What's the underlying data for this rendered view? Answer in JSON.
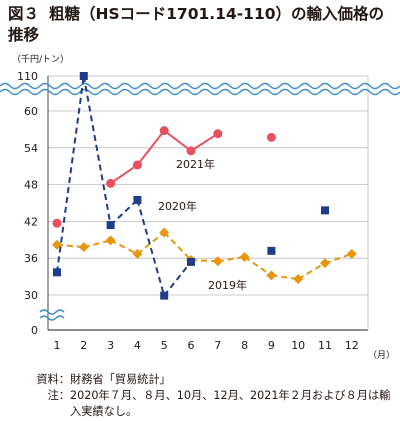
{
  "figure": {
    "label": "図３",
    "title": "粗糖（HSコード1701.14-110）の輸入価格の推移"
  },
  "chart_data": {
    "type": "line",
    "unit_label": "（千円/トン）",
    "x_unit": "（月）",
    "categories": [
      "1",
      "2",
      "3",
      "4",
      "5",
      "6",
      "7",
      "8",
      "9",
      "10",
      "11",
      "12"
    ],
    "y_ticks": [
      "0",
      "30",
      "36",
      "42",
      "48",
      "54",
      "60",
      "110"
    ],
    "axis_break": true,
    "series": [
      {
        "name": "2019年",
        "style": "dashed-diamond",
        "color": "#e8960f",
        "points": [
          [
            1,
            38.2
          ],
          [
            2,
            37.8
          ],
          [
            3,
            38.9
          ],
          [
            4,
            36.7
          ],
          [
            5,
            40.2
          ],
          [
            6,
            35.7
          ],
          [
            7,
            35.5
          ],
          [
            8,
            36.2
          ],
          [
            9,
            33.2
          ],
          [
            10,
            32.6
          ],
          [
            11,
            35.2
          ],
          [
            12,
            36.7
          ]
        ]
      },
      {
        "name": "2020年",
        "style": "dashed-square",
        "color": "#1f3d8a",
        "points": [
          [
            1,
            33.7
          ],
          [
            2,
            110
          ],
          [
            3,
            41.4
          ],
          [
            4,
            45.5
          ],
          [
            5,
            29.9
          ],
          [
            6,
            35.4
          ],
          [
            9,
            37.2
          ],
          [
            11,
            43.8
          ]
        ]
      },
      {
        "name": "2021年",
        "style": "solid-circle",
        "color": "#e8505f",
        "points": [
          [
            1,
            41.7
          ],
          [
            3,
            48.2
          ],
          [
            4,
            51.2
          ],
          [
            5,
            56.8
          ],
          [
            6,
            53.5
          ],
          [
            7,
            56.3
          ],
          [
            9,
            55.7
          ]
        ]
      }
    ],
    "gaps_note": "2020年7月、8月、10月、12月、2021年2月および8月は輸入実績なし。"
  },
  "notes": [
    {
      "head": "資料：",
      "text": "財務省「貿易統計」"
    },
    {
      "head": "注：",
      "text": "2020年７月、８月、10月、12月、2021年２月および８月は輸入実績なし。"
    }
  ]
}
